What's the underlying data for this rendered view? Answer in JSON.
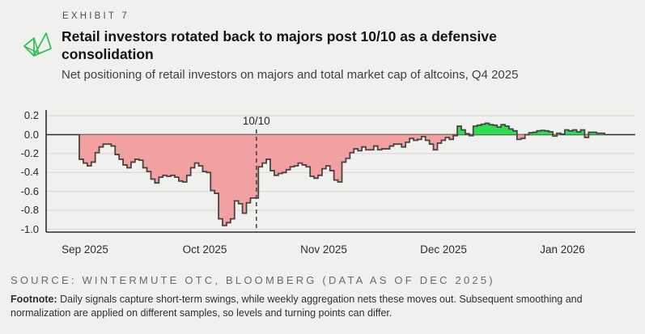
{
  "header": {
    "exhibit_label": "EXHIBIT 7",
    "title_line1": "Retail investors rotated back to majors post 10/10 as a defensive",
    "title_line2": "consolidation",
    "subtitle": "Net positioning of retail investors on majors and total market cap of altcoins, Q4 2025",
    "logo_name": "wintermute-logo",
    "logo_color": "#2cc04e"
  },
  "chart_data": {
    "type": "area",
    "subtype": "step-daily",
    "title": "Retail investors rotated back to majors post 10/10 as a defensive consolidation",
    "ylabel": "",
    "xlabel": "",
    "ylim": [
      -1.05,
      0.25
    ],
    "grid": true,
    "ytick_labels": [
      "0.2",
      "0.0",
      "-0.2",
      "-0.4",
      "-0.6",
      "-0.8",
      "-1.0"
    ],
    "ytick_values": [
      0.2,
      0.0,
      -0.2,
      -0.4,
      -0.6,
      -0.8,
      -1.0
    ],
    "xtick_labels": [
      "Sep 2025",
      "Oct 2025",
      "Nov 2025",
      "Dec 2025",
      "Jan 2026"
    ],
    "annotation": {
      "label": "10/10",
      "at_index": 44.5
    },
    "colors": {
      "positive_fill": "#2fdd55",
      "negative_fill": "#f2a1a3",
      "stroke": "#4b4340",
      "zero_axis": "#2c2c2a"
    },
    "values": [
      -0.26,
      -0.3,
      -0.33,
      -0.29,
      -0.19,
      -0.13,
      -0.1,
      -0.1,
      -0.12,
      -0.21,
      -0.26,
      -0.32,
      -0.35,
      -0.29,
      -0.26,
      -0.27,
      -0.35,
      -0.39,
      -0.47,
      -0.51,
      -0.45,
      -0.43,
      -0.44,
      -0.43,
      -0.45,
      -0.49,
      -0.5,
      -0.43,
      -0.35,
      -0.3,
      -0.33,
      -0.39,
      -0.4,
      -0.59,
      -0.62,
      -0.89,
      -0.96,
      -0.93,
      -0.89,
      -0.7,
      -0.73,
      -0.83,
      -0.72,
      -0.67,
      -0.67,
      -0.34,
      -0.3,
      -0.26,
      -0.38,
      -0.43,
      -0.41,
      -0.4,
      -0.37,
      -0.34,
      -0.33,
      -0.3,
      -0.32,
      -0.34,
      -0.44,
      -0.46,
      -0.43,
      -0.36,
      -0.33,
      -0.38,
      -0.48,
      -0.5,
      -0.29,
      -0.25,
      -0.19,
      -0.15,
      -0.17,
      -0.13,
      -0.16,
      -0.16,
      -0.12,
      -0.16,
      -0.15,
      -0.15,
      -0.12,
      -0.1,
      -0.1,
      -0.13,
      -0.08,
      -0.04,
      -0.06,
      -0.05,
      -0.02,
      -0.06,
      -0.1,
      -0.16,
      -0.09,
      -0.06,
      -0.03,
      -0.05,
      -0.01,
      0.09,
      0.05,
      0.01,
      -0.01,
      0.09,
      0.1,
      0.11,
      0.12,
      0.105,
      0.1,
      0.08,
      0.105,
      0.09,
      0.06,
      0.04,
      -0.05,
      -0.04,
      0.0,
      0.02,
      0.025,
      0.04,
      0.045,
      0.04,
      0.03,
      -0.015,
      0.015,
      0.005,
      0.05,
      0.04,
      0.05,
      0.03,
      0.05,
      -0.03,
      0.025,
      0.025,
      0.015,
      0.015
    ]
  },
  "footer": {
    "source": "SOURCE: WINTERMUTE OTC, BLOOMBERG (DATA AS OF DEC 2025)",
    "footnote_label": "Footnote:",
    "footnote_text": " Daily signals capture short-term swings, while weekly aggregation nets these moves out. Subsequent smoothing and normalization are applied on different samples, so levels and turning points can differ."
  }
}
